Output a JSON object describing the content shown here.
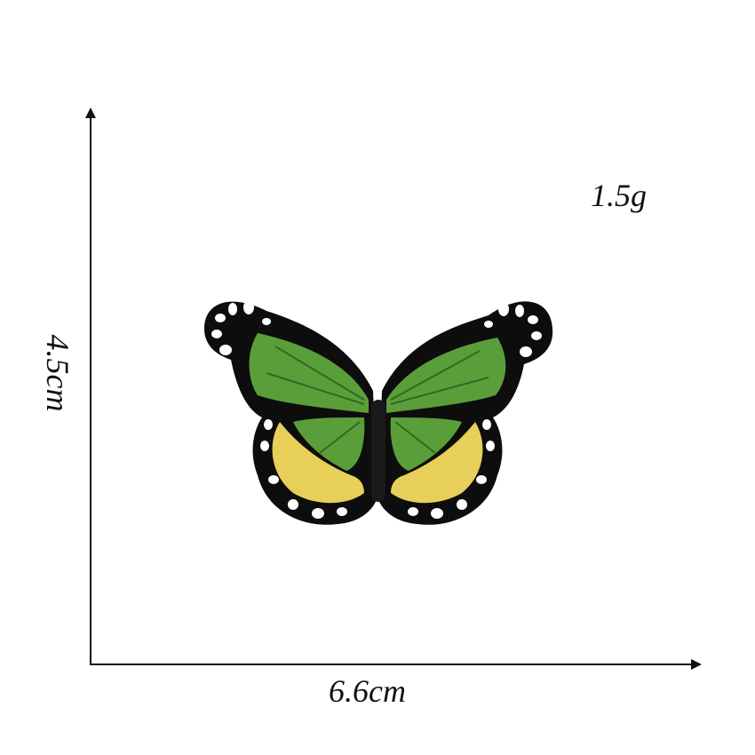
{
  "dimensions": {
    "height": "4.5cm",
    "width": "6.6cm",
    "weight": "1.5g"
  },
  "product": {
    "icon": "butterfly-patch-icon",
    "colors": {
      "border": "#0d0d0d",
      "green": "#5a9e3a",
      "green_dark": "#3e7d2a",
      "yellow": "#e8cf5a",
      "spots": "#ffffff"
    }
  }
}
